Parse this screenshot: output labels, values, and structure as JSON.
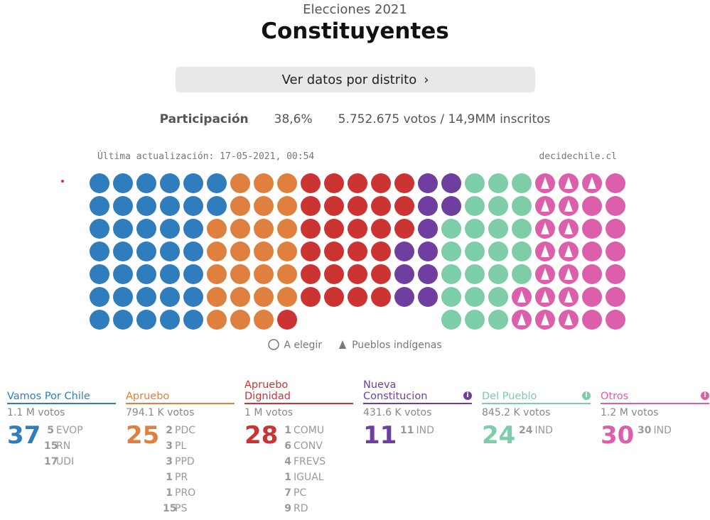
{
  "header": {
    "subtitle": "Elecciones 2021",
    "title": "Constituyentes"
  },
  "button": "Ver datos por distrito",
  "participation": {
    "label": "Participación",
    "percent": "38,6%",
    "votes": "5.752.675 votos / 14,9MM inscritos"
  },
  "updated": "Última actualización: 17-05-2021, 00:54",
  "source": "decidechile.cl",
  "seat_chart": {
    "rows": 7,
    "column_heights": [
      7,
      7,
      7,
      7,
      7,
      7,
      7,
      7,
      7,
      6,
      6,
      6,
      6,
      6,
      6,
      7,
      7,
      7,
      7,
      7,
      7,
      7,
      7
    ],
    "indigenous_seats": 17
  },
  "legend": {
    "elect": "A elegir",
    "indigenous": "Pueblos indígenas"
  },
  "parties": [
    {
      "name": "Vamos Por Chile",
      "color": "#2f7dbd",
      "votes": "1.1 M votos",
      "seats": 37,
      "info": false,
      "lists": [
        {
          "seats": 5,
          "name": "EVOP"
        },
        {
          "seats": 15,
          "name": "RN"
        },
        {
          "seats": 17,
          "name": "UDI"
        }
      ]
    },
    {
      "name": "Apruebo",
      "color": "#e0803f",
      "votes": "794.1 K votos",
      "seats": 25,
      "info": false,
      "lists": [
        {
          "seats": 2,
          "name": "PDC"
        },
        {
          "seats": 3,
          "name": "PL"
        },
        {
          "seats": 3,
          "name": "PPD"
        },
        {
          "seats": 1,
          "name": "PR"
        },
        {
          "seats": 1,
          "name": "PRO"
        },
        {
          "seats": 15,
          "name": "PS"
        }
      ]
    },
    {
      "name": "Apruebo Dignidad",
      "color": "#cc3434",
      "votes": "1 M votos",
      "seats": 28,
      "info": false,
      "lists": [
        {
          "seats": 1,
          "name": "COMU"
        },
        {
          "seats": 6,
          "name": "CONV"
        },
        {
          "seats": 4,
          "name": "FREVS"
        },
        {
          "seats": 1,
          "name": "IGUAL"
        },
        {
          "seats": 7,
          "name": "PC"
        },
        {
          "seats": 9,
          "name": "RD"
        }
      ]
    },
    {
      "name": "Nueva Constitucion",
      "color": "#6e3f9f",
      "votes": "431.6 K votos",
      "seats": 11,
      "info": true,
      "lists": [
        {
          "seats": 11,
          "name": "IND"
        }
      ]
    },
    {
      "name": "Del Pueblo",
      "color": "#7dcda9",
      "votes": "845.2 K votos",
      "seats": 24,
      "info": true,
      "lists": [
        {
          "seats": 24,
          "name": "IND"
        }
      ]
    },
    {
      "name": "Otros",
      "color": "#dc5fab",
      "votes": "1.2 M votos",
      "seats": 30,
      "info": true,
      "lists": [
        {
          "seats": 30,
          "name": "IND"
        }
      ]
    }
  ]
}
